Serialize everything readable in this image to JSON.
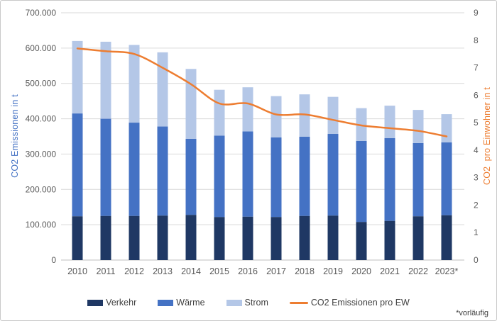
{
  "chart_data": {
    "type": "composite",
    "subtype": "stacked-bar-with-line",
    "categories": [
      "2010",
      "2011",
      "2012",
      "2013",
      "2014",
      "2015",
      "2016",
      "2017",
      "2018",
      "2019",
      "2020",
      "2021",
      "2022",
      "2023*"
    ],
    "series": [
      {
        "name": "Verkehr",
        "type": "bar",
        "axis": "left",
        "color": "#1F3864",
        "values": [
          124000,
          125000,
          125000,
          126000,
          128000,
          122000,
          123000,
          122000,
          125000,
          126000,
          108000,
          111000,
          124000,
          127000
        ]
      },
      {
        "name": "Wärme",
        "type": "bar",
        "axis": "left",
        "color": "#4472C4",
        "values": [
          291000,
          275000,
          264000,
          252000,
          215000,
          230000,
          241000,
          225000,
          224000,
          231000,
          229000,
          234000,
          207000,
          206000
        ]
      },
      {
        "name": "Strom",
        "type": "bar",
        "axis": "left",
        "color": "#B4C7E7",
        "values": [
          205000,
          218000,
          220000,
          210000,
          198000,
          130000,
          125000,
          117000,
          120000,
          105000,
          93000,
          92000,
          94000,
          80000
        ]
      },
      {
        "name": "CO2 Emissionen pro EW",
        "type": "line",
        "axis": "right",
        "color": "#ED7D31",
        "values": [
          7.7,
          7.6,
          7.5,
          7.0,
          6.4,
          5.7,
          5.7,
          5.3,
          5.3,
          5.1,
          4.9,
          4.8,
          4.7,
          4.5
        ]
      }
    ],
    "left_axis": {
      "title": "CO2 Emissionen in t",
      "title_color": "#4472C4",
      "min": 0,
      "max": 700000,
      "step": 100000,
      "tick_labels": [
        "0",
        "100.000",
        "200.000",
        "300.000",
        "400.000",
        "500.000",
        "600.000",
        "700.000"
      ]
    },
    "right_axis": {
      "title": "CO2  pro Einwohner in t",
      "title_color": "#ED7D31",
      "min": 0,
      "max": 9,
      "step": 1,
      "tick_labels": [
        "0",
        "1",
        "2",
        "3",
        "4",
        "5",
        "6",
        "7",
        "8",
        "9"
      ]
    },
    "grid": true,
    "gridline_color": "#D9D9D9",
    "axis_line_color": "#BFBFBF",
    "tick_label_color": "#595959",
    "legend_position": "bottom",
    "footnote": "*vorläufig"
  }
}
